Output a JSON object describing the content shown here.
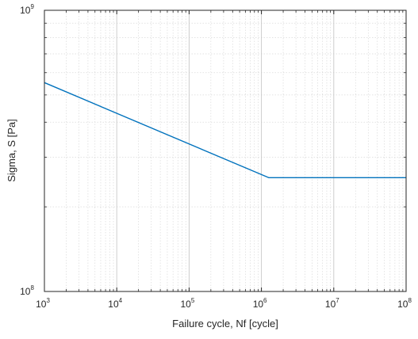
{
  "chart_data": {
    "type": "line",
    "title": "",
    "xlabel": "Failure cycle, Nf [cycle]",
    "ylabel": "Sigma, S [Pa]",
    "x_scale": "log",
    "y_scale": "log",
    "xlim": [
      1000,
      100000000
    ],
    "ylim": [
      100000000,
      1000000000
    ],
    "x_ticks": [
      {
        "value": 1000,
        "base": "10",
        "exp": "3"
      },
      {
        "value": 10000,
        "base": "10",
        "exp": "4"
      },
      {
        "value": 100000,
        "base": "10",
        "exp": "5"
      },
      {
        "value": 1000000,
        "base": "10",
        "exp": "6"
      },
      {
        "value": 10000000,
        "base": "10",
        "exp": "7"
      },
      {
        "value": 100000000,
        "base": "10",
        "exp": "8"
      }
    ],
    "y_ticks": [
      {
        "value": 100000000,
        "base": "10",
        "exp": "8"
      },
      {
        "value": 1000000000,
        "base": "10",
        "exp": "9"
      }
    ],
    "grid": true,
    "minor_grid": true,
    "box": true,
    "line_color": "#0072BD",
    "series": [
      {
        "x": [
          1000,
          1260000,
          100000000
        ],
        "y": [
          553000000,
          254000000,
          254000000
        ]
      }
    ]
  }
}
